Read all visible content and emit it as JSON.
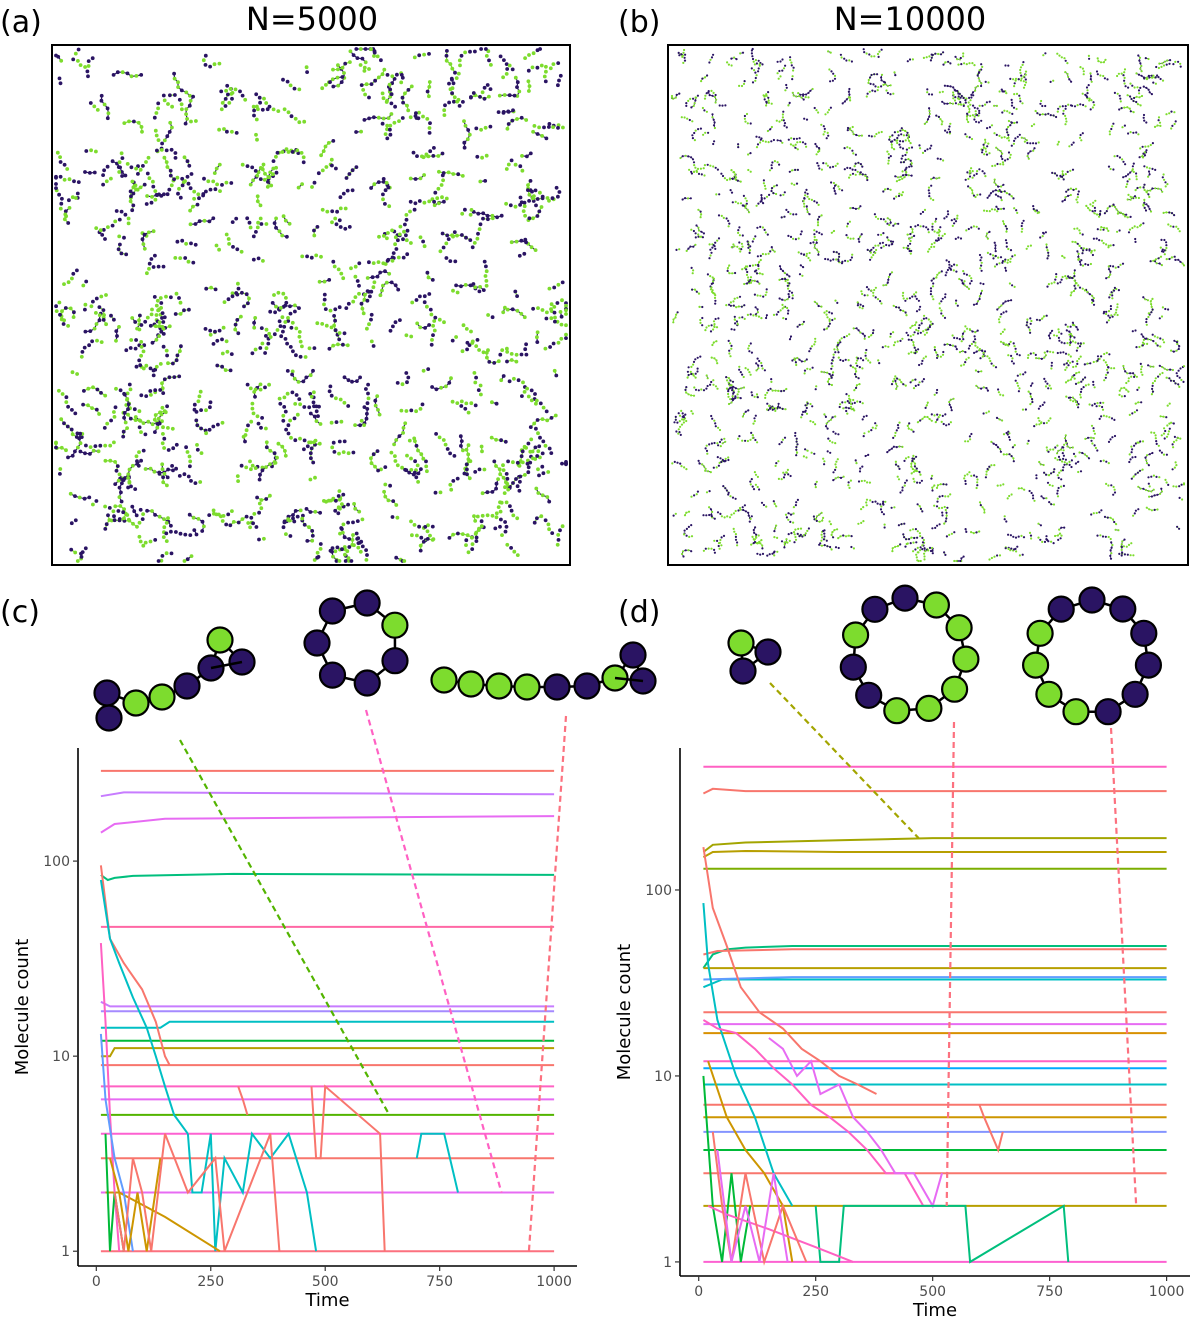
{
  "panels": {
    "a": {
      "label": "(a)",
      "title": "N=5000"
    },
    "b": {
      "label": "(b)",
      "title": "N=10000"
    },
    "c": {
      "label": "(c)"
    },
    "d": {
      "label": "(d)"
    }
  },
  "colors": {
    "dark": "#2a1463",
    "green": "#7ddc2e",
    "outline": "#000000"
  },
  "snapshots": {
    "a": {
      "particles": 1800,
      "cluster_count": 520
    },
    "b": {
      "particles": 1700,
      "cluster_count": 900
    }
  },
  "chart_data": [
    {
      "panel": "c",
      "type": "line",
      "xlabel": "Time",
      "ylabel": "Molecule count",
      "xlim": [
        -40,
        1050
      ],
      "ylim": [
        0.84,
        380
      ],
      "log_y": true,
      "xticks": [
        0,
        250,
        500,
        750,
        1000
      ],
      "xtick_labels": [
        "0",
        "250",
        "500",
        "750",
        "1000"
      ],
      "yticks": [
        1,
        10,
        100
      ],
      "ytick_labels": [
        "1",
        "10",
        "100"
      ],
      "series": [
        {
          "color": "#f8766d",
          "x": [
            10,
            1000
          ],
          "y": [
            290,
            290
          ]
        },
        {
          "color": "#c77cff",
          "x": [
            10,
            60,
            1000
          ],
          "y": [
            215,
            225,
            220
          ]
        },
        {
          "color": "#e76bf3",
          "x": [
            10,
            40,
            150,
            1000
          ],
          "y": [
            140,
            155,
            165,
            170
          ]
        },
        {
          "color": "#00bf7d",
          "x": [
            10,
            25,
            40,
            80,
            300,
            1000
          ],
          "y": [
            85,
            80,
            82,
            84,
            86,
            85
          ]
        },
        {
          "color": "#ff67a4",
          "x": [
            10,
            1000
          ],
          "y": [
            46,
            46
          ]
        },
        {
          "color": "#c77cff",
          "x": [
            10,
            30,
            100,
            1000
          ],
          "y": [
            19,
            18,
            18,
            18
          ]
        },
        {
          "color": "#a58aff",
          "x": [
            10,
            1000
          ],
          "y": [
            17,
            17
          ]
        },
        {
          "color": "#00bfc4",
          "x": [
            10,
            140,
            160,
            1000
          ],
          "y": [
            14,
            14,
            15,
            15
          ]
        },
        {
          "color": "#00ba38",
          "x": [
            10,
            1000
          ],
          "y": [
            12,
            12
          ]
        },
        {
          "color": "#b79f00",
          "x": [
            10,
            30,
            40,
            1000
          ],
          "y": [
            10,
            10,
            11,
            11
          ]
        },
        {
          "color": "#f8766d",
          "x": [
            10,
            1000
          ],
          "y": [
            9,
            9
          ]
        },
        {
          "color": "#ff61c3",
          "x": [
            10,
            1000
          ],
          "y": [
            7,
            7
          ]
        },
        {
          "color": "#e76bf3",
          "x": [
            10,
            1000
          ],
          "y": [
            6,
            6
          ]
        },
        {
          "color": "#53b400",
          "x": [
            10,
            1000
          ],
          "y": [
            5,
            5
          ]
        },
        {
          "color": "#fd61d1",
          "x": [
            10,
            1000
          ],
          "y": [
            4,
            4
          ]
        },
        {
          "color": "#f8766d",
          "x": [
            10,
            1000
          ],
          "y": [
            3,
            3
          ]
        },
        {
          "color": "#e76bf3",
          "x": [
            10,
            1000
          ],
          "y": [
            2,
            2
          ]
        },
        {
          "color": "#fc717f",
          "x": [
            10,
            1000
          ],
          "y": [
            1,
            1
          ]
        },
        {
          "color": "#f8766d",
          "x": [
            10,
            30,
            60,
            100,
            130,
            150,
            160
          ],
          "y": [
            95,
            40,
            30,
            22,
            15,
            10,
            9
          ]
        },
        {
          "color": "#00bfc4",
          "x": [
            10,
            30,
            50,
            80,
            110,
            130,
            150,
            170,
            200
          ],
          "y": [
            80,
            40,
            30,
            20,
            14,
            10,
            7,
            5,
            4
          ]
        },
        {
          "color": "#00bfc4",
          "x": [
            200,
            210,
            230,
            250,
            260,
            280,
            320,
            340,
            380,
            420,
            460,
            480
          ],
          "y": [
            4,
            2,
            2,
            4,
            1,
            3,
            2,
            4,
            3,
            4,
            2,
            1
          ]
        },
        {
          "color": "#f8766d",
          "x": [
            470,
            480,
            490,
            500,
            620,
            630
          ],
          "y": [
            7,
            3,
            3,
            7,
            4,
            1
          ]
        },
        {
          "color": "#00bfc4",
          "x": [
            700,
            710,
            760,
            790
          ],
          "y": [
            3,
            4,
            4,
            2
          ]
        },
        {
          "color": "#f8766d",
          "x": [
            310,
            320,
            330
          ],
          "y": [
            7,
            6,
            5
          ]
        },
        {
          "color": "#cd9600",
          "x": [
            20,
            50,
            150,
            270
          ],
          "y": [
            2,
            2,
            1.5,
            1
          ]
        },
        {
          "color": "#ff61c3",
          "x": [
            10,
            20,
            30,
            40,
            50
          ],
          "y": [
            38,
            15,
            5,
            2,
            1
          ]
        },
        {
          "color": "#619cff",
          "x": [
            10,
            20,
            40,
            60,
            80
          ],
          "y": [
            13,
            6,
            3,
            2,
            1
          ]
        },
        {
          "color": "#00ba38",
          "x": [
            20,
            30,
            40,
            60
          ],
          "y": [
            4,
            1,
            2,
            1
          ]
        },
        {
          "color": "#cd9600",
          "x": [
            30,
            50,
            70,
            90,
            110,
            140
          ],
          "y": [
            3,
            2,
            1,
            2,
            1,
            3
          ]
        },
        {
          "color": "#f8766d",
          "x": [
            40,
            60,
            80,
            100,
            120,
            150,
            200,
            260,
            280,
            380,
            400
          ],
          "y": [
            2,
            1,
            3,
            2,
            1,
            4,
            2,
            3,
            1,
            4,
            1
          ]
        }
      ]
    },
    {
      "panel": "d",
      "type": "line",
      "xlabel": "Time",
      "ylabel": "Molecule count",
      "xlim": [
        -40,
        1050
      ],
      "ylim": [
        0.84,
        580
      ],
      "log_y": true,
      "xticks": [
        0,
        250,
        500,
        750,
        1000
      ],
      "xtick_labels": [
        "0",
        "250",
        "500",
        "750",
        "1000"
      ],
      "yticks": [
        1,
        10,
        100
      ],
      "ytick_labels": [
        "1",
        "10",
        "100"
      ],
      "series": [
        {
          "color": "#ff61c3",
          "x": [
            10,
            1000
          ],
          "y": [
            460,
            460
          ]
        },
        {
          "color": "#f8766d",
          "x": [
            10,
            30,
            100,
            1000
          ],
          "y": [
            330,
            350,
            340,
            340
          ]
        },
        {
          "color": "#a3a500",
          "x": [
            10,
            30,
            100,
            300,
            500,
            1000
          ],
          "y": [
            160,
            175,
            180,
            185,
            190,
            190
          ]
        },
        {
          "color": "#b79f00",
          "x": [
            10,
            30,
            100,
            300,
            1000
          ],
          "y": [
            150,
            160,
            162,
            160,
            160
          ]
        },
        {
          "color": "#7cae00",
          "x": [
            10,
            1000
          ],
          "y": [
            130,
            130
          ]
        },
        {
          "color": "#00bf7d",
          "x": [
            10,
            30,
            60,
            100,
            200,
            1000
          ],
          "y": [
            38,
            45,
            48,
            49,
            50,
            50
          ]
        },
        {
          "color": "#f8766d",
          "x": [
            10,
            40,
            200,
            1000
          ],
          "y": [
            45,
            47,
            48,
            48
          ]
        },
        {
          "color": "#b79f00",
          "x": [
            10,
            1000
          ],
          "y": [
            38,
            38
          ]
        },
        {
          "color": "#00bfc4",
          "x": [
            10,
            50,
            1000
          ],
          "y": [
            30,
            33,
            33
          ]
        },
        {
          "color": "#619cff",
          "x": [
            10,
            200,
            1000
          ],
          "y": [
            33,
            34,
            34
          ]
        },
        {
          "color": "#f8766d",
          "x": [
            10,
            1000
          ],
          "y": [
            22,
            22
          ]
        },
        {
          "color": "#e76bf3",
          "x": [
            10,
            1000
          ],
          "y": [
            19,
            19
          ]
        },
        {
          "color": "#d89000",
          "x": [
            10,
            1000
          ],
          "y": [
            17,
            17
          ]
        },
        {
          "color": "#ff61c3",
          "x": [
            10,
            1000
          ],
          "y": [
            12,
            12
          ]
        },
        {
          "color": "#00a9ff",
          "x": [
            10,
            1000
          ],
          "y": [
            11,
            11
          ]
        },
        {
          "color": "#00bfc4",
          "x": [
            10,
            1000
          ],
          "y": [
            9,
            9
          ]
        },
        {
          "color": "#f8766d",
          "x": [
            10,
            1000
          ],
          "y": [
            7,
            7
          ]
        },
        {
          "color": "#cd9600",
          "x": [
            10,
            1000
          ],
          "y": [
            6,
            6
          ]
        },
        {
          "color": "#8494ff",
          "x": [
            10,
            1000
          ],
          "y": [
            5,
            5
          ]
        },
        {
          "color": "#00ba38",
          "x": [
            10,
            1000
          ],
          "y": [
            4,
            4
          ]
        },
        {
          "color": "#f8766d",
          "x": [
            10,
            1000
          ],
          "y": [
            3,
            3
          ]
        },
        {
          "color": "#b79f00",
          "x": [
            10,
            1000
          ],
          "y": [
            2,
            2
          ]
        },
        {
          "color": "#fd61d1",
          "x": [
            10,
            1000
          ],
          "y": [
            1,
            1
          ]
        },
        {
          "color": "#00bfc4",
          "x": [
            10,
            20,
            40,
            80,
            120,
            160,
            200
          ],
          "y": [
            85,
            40,
            20,
            10,
            6,
            3,
            2
          ]
        },
        {
          "color": "#f8766d",
          "x": [
            10,
            30,
            60,
            90,
            130,
            180,
            220,
            260,
            300,
            340,
            380
          ],
          "y": [
            170,
            80,
            50,
            30,
            22,
            18,
            14,
            12,
            10,
            9,
            8
          ]
        },
        {
          "color": "#ff61c3",
          "x": [
            10,
            40,
            80,
            120,
            160,
            200,
            240,
            280,
            320,
            360,
            400,
            440,
            480,
            520
          ],
          "y": [
            20,
            18,
            17,
            14,
            11,
            9,
            7,
            6,
            5,
            4,
            3,
            3,
            2,
            2
          ]
        },
        {
          "color": "#e76bf3",
          "x": [
            150,
            180,
            210,
            240,
            260,
            300,
            330,
            360,
            390,
            420,
            460,
            500,
            520
          ],
          "y": [
            16,
            14,
            10,
            12,
            8,
            9,
            6,
            5,
            4,
            3,
            3,
            2,
            3
          ]
        },
        {
          "color": "#00bf7d",
          "x": [
            250,
            260,
            300,
            310,
            570,
            580,
            780,
            790
          ],
          "y": [
            2,
            1,
            1,
            2,
            2,
            1,
            2,
            1
          ]
        },
        {
          "color": "#f8766d",
          "x": [
            600,
            610,
            640,
            650
          ],
          "y": [
            7,
            6,
            4,
            5
          ]
        },
        {
          "color": "#cd9600",
          "x": [
            20,
            60,
            100,
            140,
            180,
            200
          ],
          "y": [
            12,
            6,
            4,
            3,
            2,
            1
          ]
        },
        {
          "color": "#00ba38",
          "x": [
            10,
            30,
            50,
            70,
            90,
            110
          ],
          "y": [
            10,
            2,
            1,
            3,
            1,
            2
          ]
        },
        {
          "color": "#ff61c3",
          "x": [
            20,
            60,
            150,
            250,
            330
          ],
          "y": [
            2,
            1.8,
            1.5,
            1.2,
            1
          ]
        },
        {
          "color": "#f8766d",
          "x": [
            30,
            50,
            70,
            100,
            140,
            180,
            230
          ],
          "y": [
            5,
            2,
            1,
            3,
            1,
            2,
            1
          ]
        },
        {
          "color": "#e76bf3",
          "x": [
            40,
            70,
            100,
            130,
            160,
            190
          ],
          "y": [
            4,
            1,
            2,
            1,
            3,
            1
          ]
        }
      ]
    }
  ]
}
